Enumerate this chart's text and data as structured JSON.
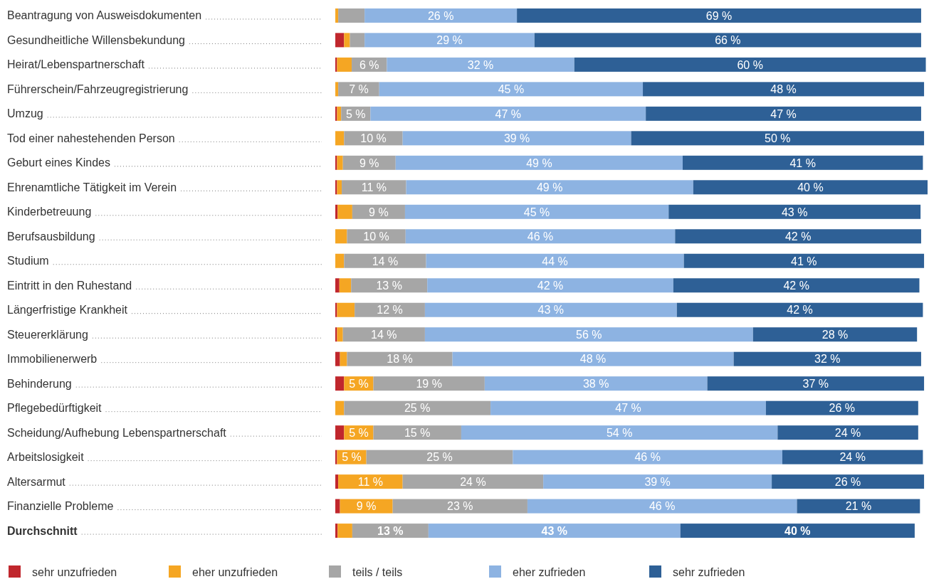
{
  "chart_data": {
    "type": "bar",
    "orientation": "horizontal",
    "stacked": true,
    "legend": "bottom",
    "categories": [
      "Beantragung von Ausweisdokumenten",
      "Gesundheitliche Willensbekundung",
      "Heirat/Lebenspartnerschaft",
      "Führerschein/Fahrzeugregistrierung",
      "Umzug",
      "Tod einer nahestehenden Person",
      "Geburt eines Kindes",
      "Ehrenamtliche Tätigkeit im Verein",
      "Kinderbetreuung",
      "Berufsausbildung",
      "Studium",
      "Eintritt in den Ruhestand",
      "Längerfristige Krankheit",
      "Steuererklärung",
      "Immobilienerwerb",
      "Behinderung",
      "Pflegebedürftigkeit",
      "Scheidung/Aufhebung Lebenspartnerschaft",
      "Arbeitslosigkeit",
      "Altersarmut",
      "Finanzielle Probleme",
      "Durchschnitt"
    ],
    "series": [
      {
        "name": "sehr unzufrieden",
        "color": "#c0272d",
        "values": [
          0,
          1.5,
          0.3,
          0,
          0.3,
          0,
          0.3,
          0.3,
          0.4,
          0,
          0,
          0.7,
          0.3,
          0.3,
          0.8,
          1.5,
          0,
          1.5,
          0.3,
          0.5,
          0.8,
          0.4
        ],
        "value_labels": [
          null,
          null,
          null,
          null,
          null,
          null,
          null,
          null,
          null,
          null,
          null,
          null,
          null,
          null,
          null,
          null,
          null,
          null,
          null,
          null,
          null,
          null
        ]
      },
      {
        "name": "eher unzufrieden",
        "color": "#f5a623",
        "values": [
          0.5,
          1,
          2.5,
          0.5,
          0.7,
          1.5,
          1,
          0.8,
          2.5,
          2,
          1.5,
          2,
          3,
          1,
          1.2,
          5,
          1.5,
          5,
          5,
          11,
          9,
          2.5
        ],
        "value_labels": [
          null,
          null,
          null,
          null,
          null,
          null,
          null,
          null,
          null,
          null,
          null,
          null,
          null,
          null,
          null,
          "5 %",
          null,
          "5 %",
          "5 %",
          "11 %",
          "9 %",
          null
        ]
      },
      {
        "name": "teils / teils",
        "color": "#a6a6a6",
        "values": [
          4.5,
          2.5,
          6,
          7,
          5,
          10,
          9,
          11,
          9,
          10,
          14,
          13,
          12,
          14,
          18,
          19,
          25,
          15,
          25,
          24,
          23,
          13
        ],
        "value_labels": [
          null,
          null,
          "6 %",
          "7 %",
          "5 %",
          "10 %",
          "9 %",
          "11 %",
          "9 %",
          "10 %",
          "14 %",
          "13 %",
          "12 %",
          "14 %",
          "18 %",
          "19 %",
          "25 %",
          "15 %",
          "25 %",
          "24 %",
          "23 %",
          "13 %"
        ]
      },
      {
        "name": "eher zufrieden",
        "color": "#8db3e2",
        "values": [
          26,
          29,
          32,
          45,
          47,
          39,
          49,
          49,
          45,
          46,
          44,
          42,
          43,
          56,
          48,
          38,
          47,
          54,
          46,
          39,
          46,
          43
        ],
        "value_labels": [
          "26 %",
          "29 %",
          "32 %",
          "45 %",
          "47 %",
          "39 %",
          "49 %",
          "49 %",
          "45 %",
          "46 %",
          "44 %",
          "42 %",
          "43 %",
          "56 %",
          "48 %",
          "38 %",
          "47 %",
          "54 %",
          "46 %",
          "39 %",
          "46 %",
          "43 %"
        ]
      },
      {
        "name": "sehr zufrieden",
        "color": "#2e6096",
        "values": [
          69,
          66,
          60,
          48,
          47,
          50,
          41,
          40,
          43,
          42,
          41,
          42,
          42,
          28,
          32,
          37,
          26,
          24,
          24,
          26,
          21,
          40
        ],
        "value_labels": [
          "69 %",
          "66 %",
          "60 %",
          "48 %",
          "47 %",
          "50 %",
          "41 %",
          "40 %",
          "43 %",
          "42 %",
          "41 %",
          "42 %",
          "42 %",
          "28 %",
          "32 %",
          "37 %",
          "26 %",
          "24 %",
          "24 %",
          "26 %",
          "21 %",
          "40 %"
        ]
      }
    ]
  }
}
